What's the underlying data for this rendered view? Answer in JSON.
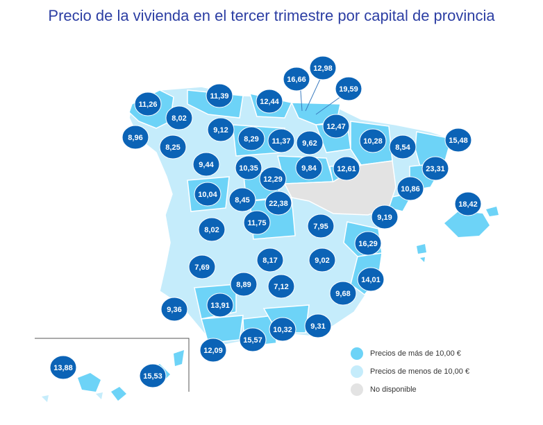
{
  "title": "Precio de la vivienda en el tercer trimestre por capital de provincia",
  "colors": {
    "more": "#6dd3f7",
    "less": "#c5ecfb",
    "na": "#e3e3e3",
    "bubble": "#0b63b6",
    "border": "#ffffff"
  },
  "legend": [
    {
      "label": "Precios de más de 10,00 €",
      "color": "#6dd3f7"
    },
    {
      "label": "Precios de menos de 10,00 €",
      "color": "#c5ecfb"
    },
    {
      "label": "No disponible",
      "color": "#e3e3e3"
    }
  ],
  "prices": [
    "11,26",
    "11,39",
    "12,44",
    "16,66",
    "12,98",
    "19,59",
    "8,02",
    "8,96",
    "9,12",
    "8,25",
    "8,29",
    "11,37",
    "9,62",
    "12,47",
    "10,28",
    "8,54",
    "15,48",
    "9,44",
    "10,35",
    "9,84",
    "12,61",
    "23,31",
    "12,29",
    "10,04",
    "8,45",
    "22,38",
    "10,86",
    "18,42",
    "11,75",
    "7,95",
    "9,19",
    "8,02",
    "16,29",
    "7,69",
    "8,17",
    "9,02",
    "14,01",
    "8,89",
    "7,12",
    "9,36",
    "13,91",
    "9,68",
    "10,32",
    "9,31",
    "12,09",
    "15,57",
    "13,88",
    "15,53"
  ]
}
